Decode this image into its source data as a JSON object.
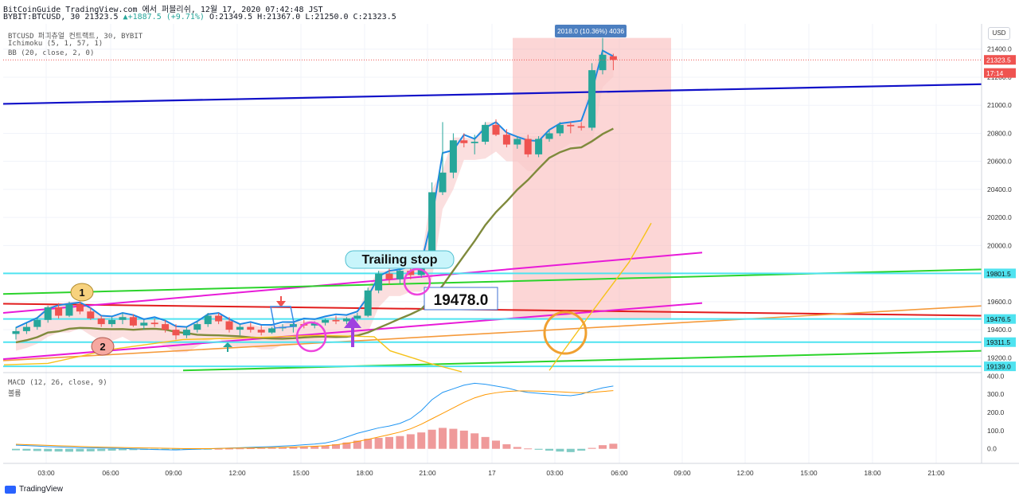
{
  "header": {
    "line1": "BitCoinGuide TradingView.com 에서 퍼블리쉬, 12월 17, 2020 07:42:48 JST",
    "symbol": "BYBIT:BTCUSD, 30",
    "last": "21323.5",
    "change": "+1887.5 (+9.71%)",
    "ohlc": "O:21349.5 H:21367.0 L:21250.0 C:21323.5"
  },
  "indicators": {
    "title": "BTCUSD 퍼피츄얼 컨트랙트, 30, BYBIT",
    "ichimoku": "Ichimoku (5, 1, 57, 1)",
    "bb": "BB (20, close, 2, 0)",
    "macd": "MACD (12, 26, close, 9)",
    "macd_sub": "볼륨"
  },
  "currency_button": "USD",
  "footer": {
    "brand": "TradingView"
  },
  "colors": {
    "up": "#26a69a",
    "down": "#ef5350",
    "blue_trend": "#1010c8",
    "red_line": "#e11d1d",
    "magenta": "#e81ad8",
    "green": "#2bd32b",
    "orange": "#f59a3b",
    "cyan": "#4fe3f0",
    "measure_box": "#f9b5b5",
    "conversion": "#1e88e5",
    "base": "#7f8a3c",
    "lagging": "#f6c21a"
  },
  "chart_data": {
    "type": "candlestick",
    "x_ticks": [
      "03:00",
      "06:00",
      "09:00",
      "12:00",
      "15:00",
      "18:00",
      "21:00",
      "17",
      "03:00",
      "06:00",
      "09:00",
      "12:00",
      "15:00",
      "18:00",
      "21:00"
    ],
    "y_ticks": [
      21400.0,
      21200.0,
      21000.0,
      20800.0,
      20600.0,
      20400.0,
      20200.0,
      20000.0,
      19600.0,
      19400.0,
      19200.0
    ],
    "ylim": [
      19100,
      21580
    ],
    "price_labels": [
      {
        "text": "21323.5",
        "value": 21323.5,
        "color": "#ef5350"
      },
      {
        "text": "17:14",
        "value": 21230,
        "color": "#ef5350"
      },
      {
        "text": "19801.5",
        "value": 19801.5,
        "color": "#4fe3f0"
      },
      {
        "text": "19476.5",
        "value": 19476.5,
        "color": "#4fe3f0"
      },
      {
        "text": "19311.5",
        "value": 19311.5,
        "color": "#4fe3f0"
      },
      {
        "text": "19139.0",
        "value": 19139.0,
        "color": "#4fe3f0"
      }
    ],
    "hlines": [
      19801.5,
      19476.5,
      19311.5,
      19139.0
    ],
    "annotations": {
      "measure": "2018.0 (10.36%) 4036",
      "trailing_stop": "Trailing stop",
      "stop_price": "19478.0",
      "marker1": "1",
      "marker2": "2"
    },
    "candles": [
      {
        "o": 19370,
        "h": 19420,
        "l": 19330,
        "c": 19390
      },
      {
        "o": 19390,
        "h": 19450,
        "l": 19370,
        "c": 19420
      },
      {
        "o": 19420,
        "h": 19490,
        "l": 19400,
        "c": 19470
      },
      {
        "o": 19470,
        "h": 19570,
        "l": 19450,
        "c": 19560
      },
      {
        "o": 19560,
        "h": 19590,
        "l": 19480,
        "c": 19500
      },
      {
        "o": 19500,
        "h": 19600,
        "l": 19490,
        "c": 19580
      },
      {
        "o": 19580,
        "h": 19600,
        "l": 19510,
        "c": 19530
      },
      {
        "o": 19530,
        "h": 19560,
        "l": 19470,
        "c": 19480
      },
      {
        "o": 19480,
        "h": 19500,
        "l": 19420,
        "c": 19440
      },
      {
        "o": 19440,
        "h": 19490,
        "l": 19420,
        "c": 19470
      },
      {
        "o": 19470,
        "h": 19520,
        "l": 19440,
        "c": 19490
      },
      {
        "o": 19490,
        "h": 19510,
        "l": 19420,
        "c": 19430
      },
      {
        "o": 19430,
        "h": 19470,
        "l": 19400,
        "c": 19450
      },
      {
        "o": 19450,
        "h": 19480,
        "l": 19420,
        "c": 19440
      },
      {
        "o": 19440,
        "h": 19470,
        "l": 19380,
        "c": 19400
      },
      {
        "o": 19400,
        "h": 19440,
        "l": 19330,
        "c": 19360
      },
      {
        "o": 19360,
        "h": 19420,
        "l": 19340,
        "c": 19400
      },
      {
        "o": 19400,
        "h": 19460,
        "l": 19380,
        "c": 19440
      },
      {
        "o": 19440,
        "h": 19520,
        "l": 19420,
        "c": 19500
      },
      {
        "o": 19500,
        "h": 19520,
        "l": 19440,
        "c": 19460
      },
      {
        "o": 19460,
        "h": 19490,
        "l": 19380,
        "c": 19400
      },
      {
        "o": 19400,
        "h": 19440,
        "l": 19360,
        "c": 19420
      },
      {
        "o": 19420,
        "h": 19450,
        "l": 19380,
        "c": 19400
      },
      {
        "o": 19400,
        "h": 19430,
        "l": 19360,
        "c": 19380
      },
      {
        "o": 19380,
        "h": 19420,
        "l": 19370,
        "c": 19410
      },
      {
        "o": 19410,
        "h": 19440,
        "l": 19390,
        "c": 19420
      },
      {
        "o": 19420,
        "h": 19450,
        "l": 19380,
        "c": 19440
      },
      {
        "o": 19440,
        "h": 19470,
        "l": 19410,
        "c": 19430
      },
      {
        "o": 19430,
        "h": 19460,
        "l": 19410,
        "c": 19450
      },
      {
        "o": 19450,
        "h": 19480,
        "l": 19430,
        "c": 19470
      },
      {
        "o": 19470,
        "h": 19500,
        "l": 19440,
        "c": 19460
      },
      {
        "o": 19460,
        "h": 19490,
        "l": 19440,
        "c": 19480
      },
      {
        "o": 19480,
        "h": 19520,
        "l": 19460,
        "c": 19500
      },
      {
        "o": 19500,
        "h": 19700,
        "l": 19490,
        "c": 19680
      },
      {
        "o": 19680,
        "h": 19820,
        "l": 19660,
        "c": 19800
      },
      {
        "o": 19800,
        "h": 19840,
        "l": 19720,
        "c": 19760
      },
      {
        "o": 19760,
        "h": 19850,
        "l": 19730,
        "c": 19820
      },
      {
        "o": 19820,
        "h": 19860,
        "l": 19760,
        "c": 19790
      },
      {
        "o": 19790,
        "h": 19900,
        "l": 19770,
        "c": 19880
      },
      {
        "o": 19880,
        "h": 20450,
        "l": 19860,
        "c": 20380
      },
      {
        "o": 20380,
        "h": 20880,
        "l": 20360,
        "c": 20520
      },
      {
        "o": 20520,
        "h": 20800,
        "l": 20480,
        "c": 20750
      },
      {
        "o": 20750,
        "h": 20800,
        "l": 20700,
        "c": 20730
      },
      {
        "o": 20730,
        "h": 20790,
        "l": 20650,
        "c": 20740
      },
      {
        "o": 20740,
        "h": 20880,
        "l": 20720,
        "c": 20860
      },
      {
        "o": 20860,
        "h": 20900,
        "l": 20780,
        "c": 20790
      },
      {
        "o": 20790,
        "h": 20830,
        "l": 20700,
        "c": 20720
      },
      {
        "o": 20720,
        "h": 20780,
        "l": 20690,
        "c": 20760
      },
      {
        "o": 20760,
        "h": 20790,
        "l": 20630,
        "c": 20650
      },
      {
        "o": 20650,
        "h": 20780,
        "l": 20630,
        "c": 20760
      },
      {
        "o": 20760,
        "h": 20830,
        "l": 20740,
        "c": 20800
      },
      {
        "o": 20800,
        "h": 20880,
        "l": 20780,
        "c": 20860
      },
      {
        "o": 20860,
        "h": 20880,
        "l": 20800,
        "c": 20850
      },
      {
        "o": 20850,
        "h": 20880,
        "l": 20820,
        "c": 20840
      },
      {
        "o": 20840,
        "h": 21300,
        "l": 20820,
        "c": 21250
      },
      {
        "o": 21250,
        "h": 21480,
        "l": 21220,
        "c": 21360
      },
      {
        "o": 21349.5,
        "h": 21367,
        "l": 21250,
        "c": 21323.5
      }
    ],
    "macd": {
      "ylim": [
        -80,
        410
      ],
      "y_ticks": [
        400.0,
        300.0,
        200.0,
        100.0,
        0.0
      ],
      "macd_line": [
        20,
        18,
        15,
        12,
        10,
        8,
        6,
        5,
        4,
        3,
        2,
        0,
        -2,
        -4,
        -5,
        -6,
        -4,
        -2,
        0,
        2,
        4,
        6,
        8,
        10,
        12,
        15,
        18,
        22,
        26,
        32,
        45,
        65,
        85,
        100,
        115,
        125,
        140,
        165,
        210,
        270,
        310,
        330,
        350,
        360,
        355,
        345,
        335,
        320,
        310,
        305,
        300,
        295,
        292,
        300,
        320,
        335,
        345
      ],
      "signal_line": [
        25,
        23,
        21,
        19,
        17,
        15,
        13,
        11,
        9,
        8,
        7,
        6,
        5,
        4,
        3,
        2,
        1,
        1,
        1,
        2,
        3,
        4,
        5,
        6,
        7,
        8,
        10,
        12,
        14,
        17,
        22,
        30,
        40,
        52,
        65,
        78,
        92,
        110,
        135,
        165,
        195,
        225,
        255,
        280,
        298,
        308,
        315,
        318,
        318,
        317,
        315,
        313,
        310,
        308,
        310,
        315,
        320
      ],
      "histogram": [
        -8,
        -10,
        -12,
        -14,
        -15,
        -16,
        -15,
        -14,
        -12,
        -10,
        -8,
        -7,
        -6,
        -5,
        -5,
        -4,
        -3,
        -2,
        -1,
        0,
        1,
        2,
        3,
        4,
        5,
        7,
        9,
        11,
        14,
        18,
        25,
        35,
        45,
        55,
        60,
        65,
        70,
        80,
        90,
        105,
        115,
        110,
        100,
        85,
        65,
        45,
        25,
        10,
        2,
        -5,
        -10,
        -15,
        -18,
        -10,
        5,
        20,
        28
      ]
    }
  }
}
